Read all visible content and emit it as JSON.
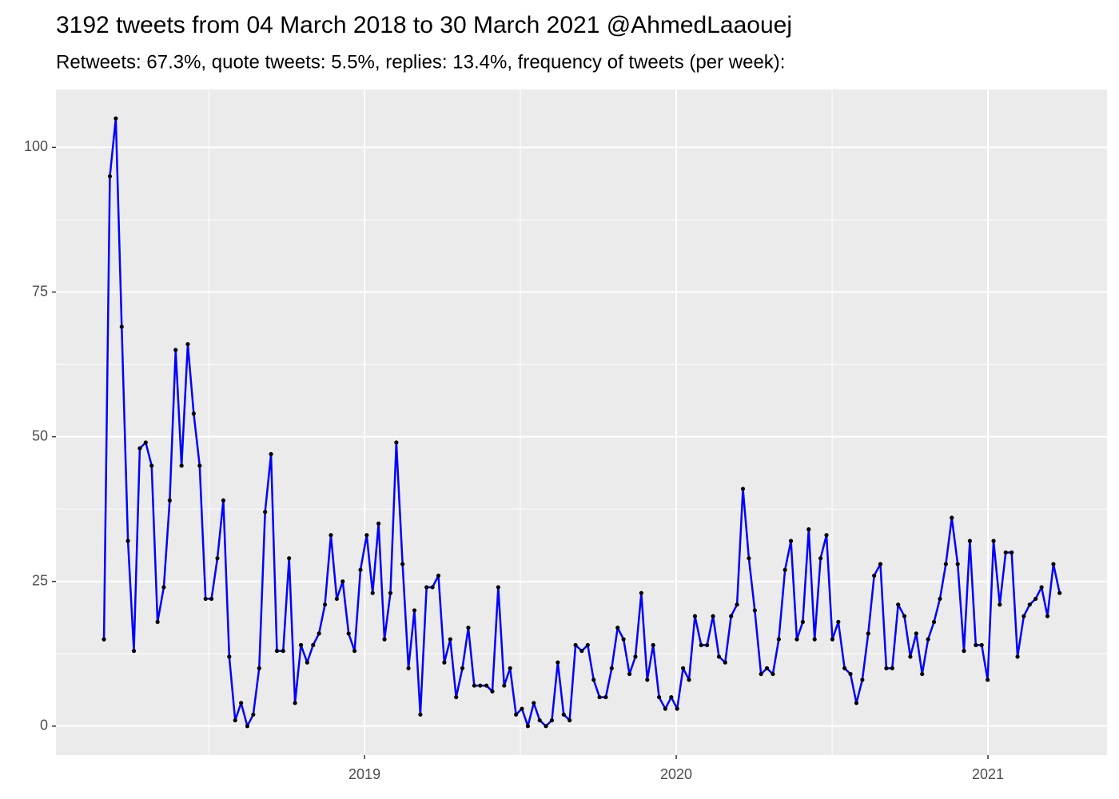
{
  "chart_data": {
    "type": "line",
    "title": "3192 tweets from 04 March 2018 to 30 March 2021 @AhmedLaaouej",
    "subtitle": "Retweets: 67.3%, quote tweets: 5.5%, replies: 13.4%, frequency of tweets (per week):",
    "color": "#0000ff",
    "point_color": "#000000",
    "grid": true,
    "xlim": [
      2018.01,
      2021.382
    ],
    "xticks": [
      2019,
      2020,
      2021
    ],
    "ylim": [
      -5,
      110
    ],
    "yticks": [
      0,
      25,
      50,
      75,
      100
    ],
    "x": [
      2018.164,
      2018.183,
      2018.202,
      2018.221,
      2018.241,
      2018.26,
      2018.279,
      2018.298,
      2018.317,
      2018.336,
      2018.356,
      2018.375,
      2018.394,
      2018.413,
      2018.433,
      2018.452,
      2018.471,
      2018.49,
      2018.509,
      2018.528,
      2018.547,
      2018.566,
      2018.585,
      2018.604,
      2018.624,
      2018.643,
      2018.662,
      2018.681,
      2018.7,
      2018.719,
      2018.739,
      2018.758,
      2018.777,
      2018.796,
      2018.816,
      2018.835,
      2018.854,
      2018.873,
      2018.892,
      2018.911,
      2018.93,
      2018.949,
      2018.968,
      2018.987,
      2019.007,
      2019.026,
      2019.045,
      2019.064,
      2019.083,
      2019.102,
      2019.122,
      2019.141,
      2019.16,
      2019.179,
      2019.199,
      2019.218,
      2019.237,
      2019.256,
      2019.275,
      2019.294,
      2019.314,
      2019.333,
      2019.352,
      2019.371,
      2019.391,
      2019.41,
      2019.429,
      2019.448,
      2019.467,
      2019.486,
      2019.505,
      2019.524,
      2019.543,
      2019.562,
      2019.582,
      2019.601,
      2019.62,
      2019.639,
      2019.658,
      2019.677,
      2019.697,
      2019.716,
      2019.735,
      2019.754,
      2019.774,
      2019.793,
      2019.812,
      2019.831,
      2019.85,
      2019.869,
      2019.888,
      2019.907,
      2019.926,
      2019.945,
      2019.965,
      2019.984,
      2020.003,
      2020.022,
      2020.041,
      2020.06,
      2020.08,
      2020.099,
      2020.118,
      2020.137,
      2020.157,
      2020.176,
      2020.195,
      2020.214,
      2020.233,
      2020.252,
      2020.272,
      2020.291,
      2020.31,
      2020.329,
      2020.349,
      2020.368,
      2020.387,
      2020.406,
      2020.425,
      2020.444,
      2020.463,
      2020.482,
      2020.501,
      2020.52,
      2020.54,
      2020.559,
      2020.578,
      2020.597,
      2020.616,
      2020.635,
      2020.655,
      2020.674,
      2020.693,
      2020.712,
      2020.732,
      2020.751,
      2020.77,
      2020.789,
      2020.808,
      2020.827,
      2020.846,
      2020.865,
      2020.884,
      2020.903,
      2020.923,
      2020.942,
      2020.961,
      2020.98,
      2020.999,
      2021.018,
      2021.038,
      2021.057,
      2021.076,
      2021.095,
      2021.115,
      2021.134,
      2021.153,
      2021.172,
      2021.191,
      2021.21,
      2021.23
    ],
    "values": [
      15,
      95,
      105,
      69,
      32,
      13,
      48,
      49,
      45,
      18,
      24,
      39,
      65,
      45,
      66,
      54,
      45,
      22,
      22,
      29,
      39,
      12,
      1,
      4,
      0,
      2,
      10,
      37,
      47,
      13,
      13,
      29,
      4,
      14,
      11,
      14,
      16,
      21,
      33,
      22,
      25,
      16,
      13,
      27,
      33,
      23,
      35,
      15,
      23,
      49,
      28,
      10,
      20,
      2,
      24,
      24,
      26,
      11,
      15,
      5,
      10,
      17,
      7,
      7,
      7,
      6,
      24,
      7,
      10,
      2,
      3,
      0,
      4,
      1,
      0,
      1,
      11,
      2,
      1,
      14,
      13,
      14,
      8,
      5,
      5,
      10,
      17,
      15,
      9,
      12,
      23,
      8,
      14,
      5,
      3,
      5,
      3,
      10,
      8,
      19,
      14,
      14,
      19,
      12,
      11,
      19,
      21,
      41,
      29,
      20,
      9,
      10,
      9,
      15,
      27,
      32,
      15,
      18,
      34,
      15,
      29,
      33,
      15,
      18,
      10,
      9,
      4,
      8,
      16,
      26,
      28,
      10,
      10,
      21,
      19,
      12,
      16,
      9,
      15,
      18,
      22,
      28,
      36,
      28,
      13,
      32,
      14,
      14,
      8,
      32,
      21,
      30,
      30,
      12,
      19,
      21,
      22,
      24,
      19,
      28,
      23
    ]
  }
}
